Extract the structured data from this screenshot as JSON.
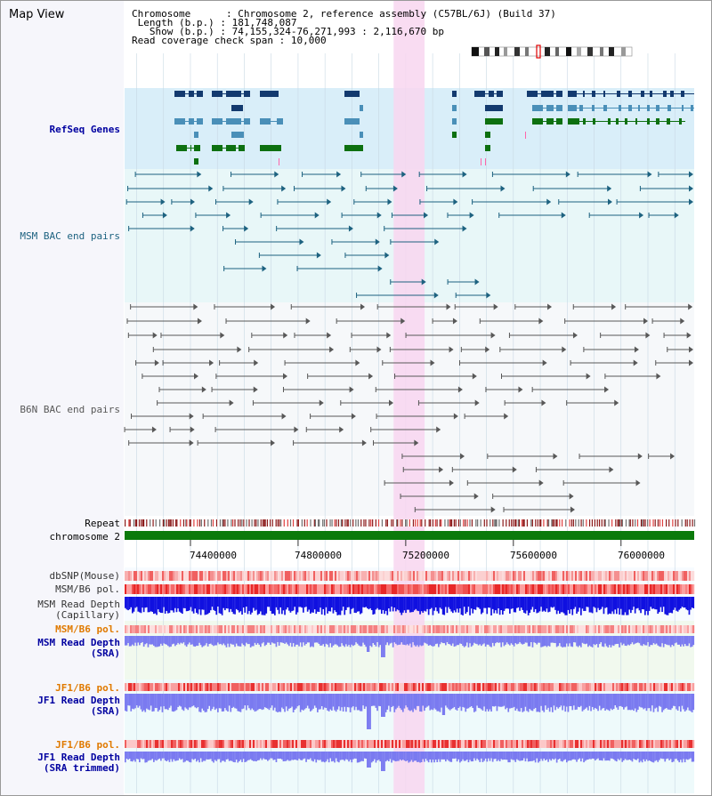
{
  "title": "Map View",
  "info": {
    "chromosome_label": "Chromosome",
    "chromosome_value": "Chromosome 2, reference assembly (C57BL/6J) (Build 37)",
    "length_label": "Length (b.p.)",
    "length_value": "181,748,087",
    "show_label": "Show (b.p.)",
    "show_value": "74,155,324-76,271,993 : 2,116,670 bp",
    "coverage_label": "Read coverage check span",
    "coverage_value": "10,000"
  },
  "tracks": {
    "refseq": "RefSeq Genes",
    "msm_bac": "MSM BAC end pairs",
    "b6n_bac": "B6N BAC end pairs",
    "repeat": "Repeat",
    "chromosome": "chromosome 2",
    "dbsnp": "dbSNP(Mouse)",
    "msm_b6_pol": "MSM/B6 pol.",
    "msm_depth_cap_1": "MSM Read Depth",
    "msm_depth_cap_2": "(Capillary)",
    "msm_b6_pol_2": "MSM/B6 pol.",
    "msm_depth_sra_1": "MSM Read Depth",
    "msm_depth_sra_2": "(SRA)",
    "jf1_b6_pol": "JF1/B6 pol.",
    "jf1_depth_sra_1": "JF1 Read Depth",
    "jf1_depth_sra_2": "(SRA)",
    "jf1_b6_pol_2": "JF1/B6 pol.",
    "jf1_depth_trim_1": "JF1 Read Depth",
    "jf1_depth_trim_2": "(SRA trimmed)"
  },
  "axis": {
    "ticks": [
      "74400000",
      "74800000",
      "75200000",
      "75600000",
      "76000000"
    ],
    "tick_values": [
      74400000,
      74800000,
      75200000,
      75600000,
      76000000
    ],
    "range": [
      74155324,
      76271993
    ]
  },
  "highlight": {
    "start": 75155000,
    "end": 75270000
  },
  "colors": {
    "refseq_bg": "#d9eef9",
    "gene_dark": "#133a6f",
    "gene_mid": "#4a8fb8",
    "gene_green": "#0d7010",
    "msm_bac": "#1d6280",
    "b6n_bac": "#585858",
    "chromosome": "#0b7a0b",
    "highlight": "#f8d6f0",
    "depth_blue": "#1010e0",
    "depth_light": "#7a7af0",
    "orange_label": "#e07a00",
    "blue_label": "#0000a0"
  }
}
